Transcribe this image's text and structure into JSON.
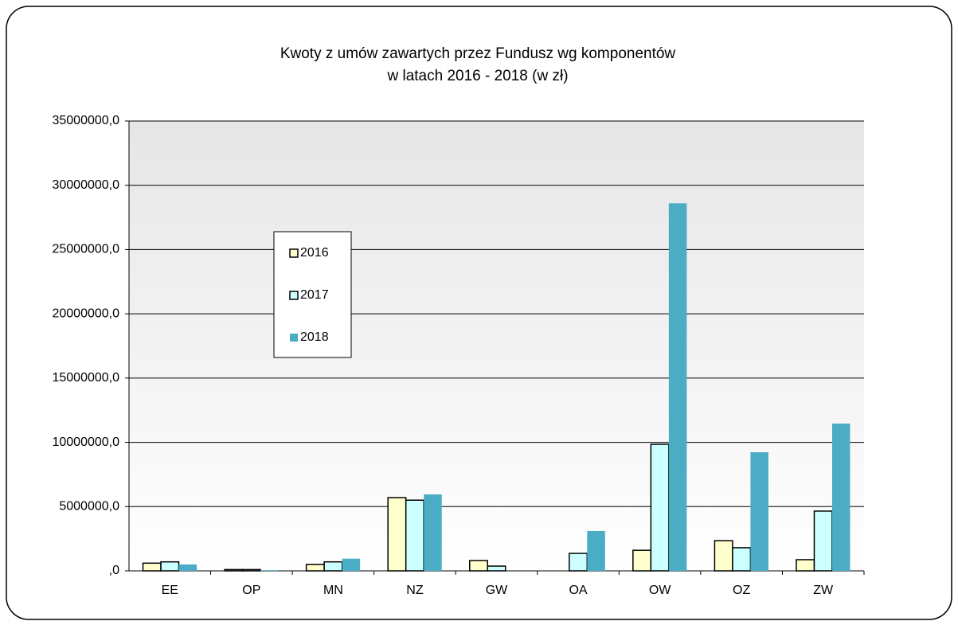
{
  "chart_data": {
    "type": "bar",
    "title": [
      "Kwoty z umów zawartych przez Fundusz wg komponentów",
      "w latach 2016 - 2018 (w zł)"
    ],
    "categories": [
      "EE",
      "OP",
      "MN",
      "NZ",
      "GW",
      "OA",
      "OW",
      "OZ",
      "ZW"
    ],
    "series": [
      {
        "name": "2016",
        "color": "#ffffcc",
        "edgecolor": "#000000",
        "values": [
          600000,
          100000,
          500000,
          5700000,
          800000,
          0,
          1600000,
          2350000,
          870000
        ]
      },
      {
        "name": "2017",
        "color": "#ccffff",
        "edgecolor": "#000000",
        "values": [
          700000,
          100000,
          700000,
          5500000,
          370000,
          1360000,
          9850000,
          1800000,
          4650000
        ]
      },
      {
        "name": "2018",
        "color": "#4bacc6",
        "values": [
          500000,
          50000,
          950000,
          5950000,
          0,
          3100000,
          28600000,
          9230000,
          11460000
        ]
      }
    ],
    "ylim": [
      0,
      35000000
    ],
    "yticks": [
      {
        "value": 0,
        "label": ",0"
      },
      {
        "value": 5000000,
        "label": "5000000,0"
      },
      {
        "value": 10000000,
        "label": "10000000,0"
      },
      {
        "value": 15000000,
        "label": "15000000,0"
      },
      {
        "value": 20000000,
        "label": "20000000,0"
      },
      {
        "value": 25000000,
        "label": "25000000,0"
      },
      {
        "value": 30000000,
        "label": "30000000,0"
      },
      {
        "value": 35000000,
        "label": "35000000,0"
      }
    ],
    "grid": true,
    "legend": "upper left"
  }
}
